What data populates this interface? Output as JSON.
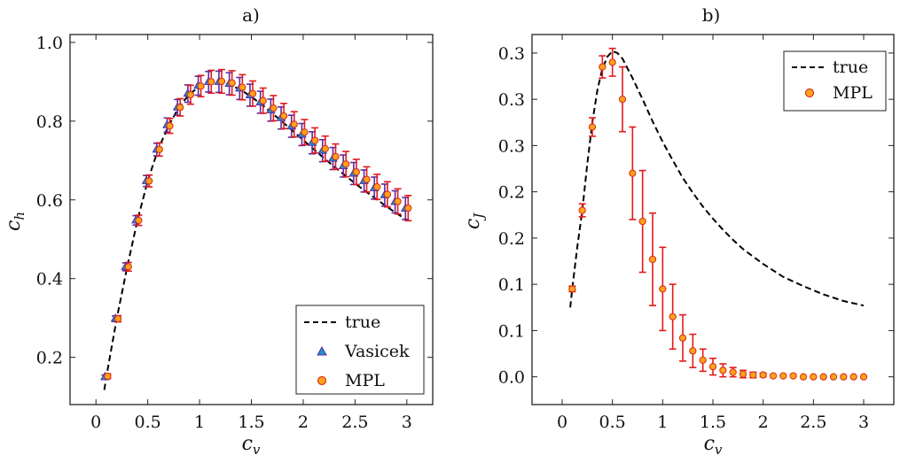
{
  "chart_data": [
    {
      "type": "scatter",
      "title": "a)",
      "xlabel": "c_v",
      "ylabel": "c_h",
      "xlabel_main": "c",
      "xlabel_sub": "v",
      "ylabel_main": "c",
      "ylabel_sub": "h",
      "xlim": [
        -0.25,
        3.25
      ],
      "ylim": [
        0.08,
        1.02
      ],
      "xticks": [
        0,
        0.5,
        1,
        1.5,
        2,
        2.5,
        3
      ],
      "xtick_labels": [
        "0",
        "0.5",
        "1",
        "1.5",
        "2",
        "2.5",
        "3"
      ],
      "yticks": [
        0.2,
        0.4,
        0.6,
        0.8,
        1.0
      ],
      "ytick_labels": [
        "0.2",
        "0.4",
        "0.6",
        "0.8",
        "1.0"
      ],
      "legend_position": "bottom-right",
      "legend": [
        "true",
        "Vasicek",
        "MPL"
      ],
      "true_curve": {
        "name": "true",
        "x": [
          0.08,
          0.1,
          0.2,
          0.3,
          0.4,
          0.5,
          0.6,
          0.7,
          0.8,
          0.9,
          1.0,
          1.1,
          1.2,
          1.3,
          1.4,
          1.5,
          1.6,
          1.7,
          1.8,
          1.9,
          2.0,
          2.1,
          2.2,
          2.3,
          2.4,
          2.5,
          2.6,
          2.7,
          2.8,
          2.9,
          3.0
        ],
        "y": [
          0.117,
          0.15,
          0.298,
          0.428,
          0.548,
          0.648,
          0.728,
          0.788,
          0.835,
          0.868,
          0.888,
          0.897,
          0.898,
          0.892,
          0.879,
          0.862,
          0.842,
          0.82,
          0.798,
          0.775,
          0.752,
          0.729,
          0.706,
          0.684,
          0.663,
          0.642,
          0.622,
          0.603,
          0.584,
          0.566,
          0.549
        ]
      },
      "series": [
        {
          "name": "Vasicek",
          "x": [
            0.1,
            0.2,
            0.3,
            0.4,
            0.5,
            0.6,
            0.7,
            0.8,
            0.9,
            1.0,
            1.1,
            1.2,
            1.3,
            1.4,
            1.5,
            1.6,
            1.7,
            1.8,
            1.9,
            2.0,
            2.1,
            2.2,
            2.3,
            2.4,
            2.5,
            2.6,
            2.7,
            2.8,
            2.9,
            3.0
          ],
          "y": [
            0.15,
            0.298,
            0.43,
            0.548,
            0.648,
            0.728,
            0.79,
            0.835,
            0.87,
            0.89,
            0.9,
            0.9,
            0.895,
            0.883,
            0.866,
            0.848,
            0.828,
            0.808,
            0.787,
            0.766,
            0.745,
            0.725,
            0.705,
            0.686,
            0.667,
            0.648,
            0.63,
            0.612,
            0.595,
            0.578
          ],
          "err": [
            0.005,
            0.007,
            0.01,
            0.012,
            0.014,
            0.016,
            0.018,
            0.02,
            0.022,
            0.024,
            0.026,
            0.027,
            0.028,
            0.028,
            0.028,
            0.028,
            0.028,
            0.028,
            0.028,
            0.028,
            0.028,
            0.028,
            0.028,
            0.028,
            0.028,
            0.028,
            0.028,
            0.028,
            0.028,
            0.028
          ]
        },
        {
          "name": "MPL",
          "x": [
            0.1,
            0.2,
            0.3,
            0.4,
            0.5,
            0.6,
            0.7,
            0.8,
            0.9,
            1.0,
            1.1,
            1.2,
            1.3,
            1.4,
            1.5,
            1.6,
            1.7,
            1.8,
            1.9,
            2.0,
            2.1,
            2.2,
            2.3,
            2.4,
            2.5,
            2.6,
            2.7,
            2.8,
            2.9,
            3.0
          ],
          "y": [
            0.152,
            0.298,
            0.43,
            0.548,
            0.648,
            0.728,
            0.788,
            0.835,
            0.867,
            0.889,
            0.9,
            0.901,
            0.897,
            0.886,
            0.87,
            0.852,
            0.833,
            0.813,
            0.792,
            0.772,
            0.751,
            0.73,
            0.71,
            0.691,
            0.671,
            0.652,
            0.633,
            0.614,
            0.596,
            0.579
          ],
          "err": [
            0.006,
            0.008,
            0.011,
            0.013,
            0.015,
            0.017,
            0.019,
            0.022,
            0.024,
            0.027,
            0.029,
            0.03,
            0.031,
            0.032,
            0.032,
            0.032,
            0.032,
            0.032,
            0.032,
            0.032,
            0.032,
            0.032,
            0.032,
            0.032,
            0.032,
            0.032,
            0.032,
            0.032,
            0.032,
            0.032
          ]
        }
      ]
    },
    {
      "type": "scatter",
      "title": "b)",
      "xlabel": "c_v",
      "ylabel": "c_J",
      "xlabel_main": "c",
      "xlabel_sub": "v",
      "ylabel_main": "c",
      "ylabel_sub": "J",
      "xlim": [
        -0.3,
        3.3
      ],
      "ylim": [
        -0.03,
        0.37
      ],
      "xticks": [
        0,
        0.5,
        1,
        1.5,
        2,
        2.5,
        3
      ],
      "xtick_labels": [
        "0",
        "0.5",
        "1",
        "1.5",
        "2",
        "2.5",
        "3"
      ],
      "yticks": [
        0.0,
        0.05,
        0.1,
        0.15,
        0.2,
        0.25,
        0.3,
        0.35
      ],
      "ytick_labels": [
        "0.0",
        "0.1",
        "0.1",
        "0.2",
        "0.2",
        "0.3",
        "0.3",
        "0.3"
      ],
      "legend_position": "top-right",
      "legend": [
        "true",
        "MPL"
      ],
      "true_curve": {
        "name": "true",
        "x": [
          0.08,
          0.1,
          0.15,
          0.2,
          0.25,
          0.3,
          0.35,
          0.4,
          0.45,
          0.5,
          0.55,
          0.6,
          0.7,
          0.8,
          0.9,
          1.0,
          1.1,
          1.2,
          1.3,
          1.4,
          1.5,
          1.6,
          1.7,
          1.8,
          1.9,
          2.0,
          2.2,
          2.4,
          2.6,
          2.8,
          3.0
        ],
        "y": [
          0.075,
          0.095,
          0.14,
          0.18,
          0.23,
          0.275,
          0.31,
          0.333,
          0.346,
          0.352,
          0.35,
          0.344,
          0.323,
          0.3,
          0.276,
          0.254,
          0.234,
          0.215,
          0.199,
          0.184,
          0.171,
          0.159,
          0.148,
          0.138,
          0.13,
          0.122,
          0.108,
          0.098,
          0.089,
          0.082,
          0.077
        ]
      },
      "series": [
        {
          "name": "MPL",
          "x": [
            0.1,
            0.2,
            0.3,
            0.4,
            0.5,
            0.6,
            0.7,
            0.8,
            0.9,
            1.0,
            1.1,
            1.2,
            1.3,
            1.4,
            1.5,
            1.6,
            1.7,
            1.8,
            1.9,
            2.0,
            2.1,
            2.2,
            2.3,
            2.4,
            2.5,
            2.6,
            2.7,
            2.8,
            2.9,
            3.0
          ],
          "y": [
            0.095,
            0.18,
            0.27,
            0.335,
            0.34,
            0.3,
            0.22,
            0.168,
            0.127,
            0.095,
            0.065,
            0.042,
            0.028,
            0.018,
            0.011,
            0.007,
            0.005,
            0.003,
            0.002,
            0.002,
            0.001,
            0.001,
            0.001,
            0.0,
            0.0,
            0.0,
            0.0,
            0.0,
            0.0,
            0.0
          ],
          "err": [
            0.003,
            0.007,
            0.01,
            0.012,
            0.015,
            0.035,
            0.05,
            0.055,
            0.05,
            0.045,
            0.035,
            0.025,
            0.018,
            0.012,
            0.009,
            0.007,
            0.005,
            0.004,
            0.003,
            0.002,
            0.0,
            0.0,
            0.0,
            0.0,
            0.0,
            0.0,
            0.0,
            0.0,
            0.0,
            0.0
          ]
        }
      ]
    }
  ],
  "colors": {
    "true_line": "#000000",
    "vasicek_fill": "#1e90c8",
    "vasicek_err": "#5a2ca0",
    "mpl_fill": "#ffa31a",
    "mpl_edge": "#d9311b",
    "mpl_err": "#e31a1c"
  }
}
